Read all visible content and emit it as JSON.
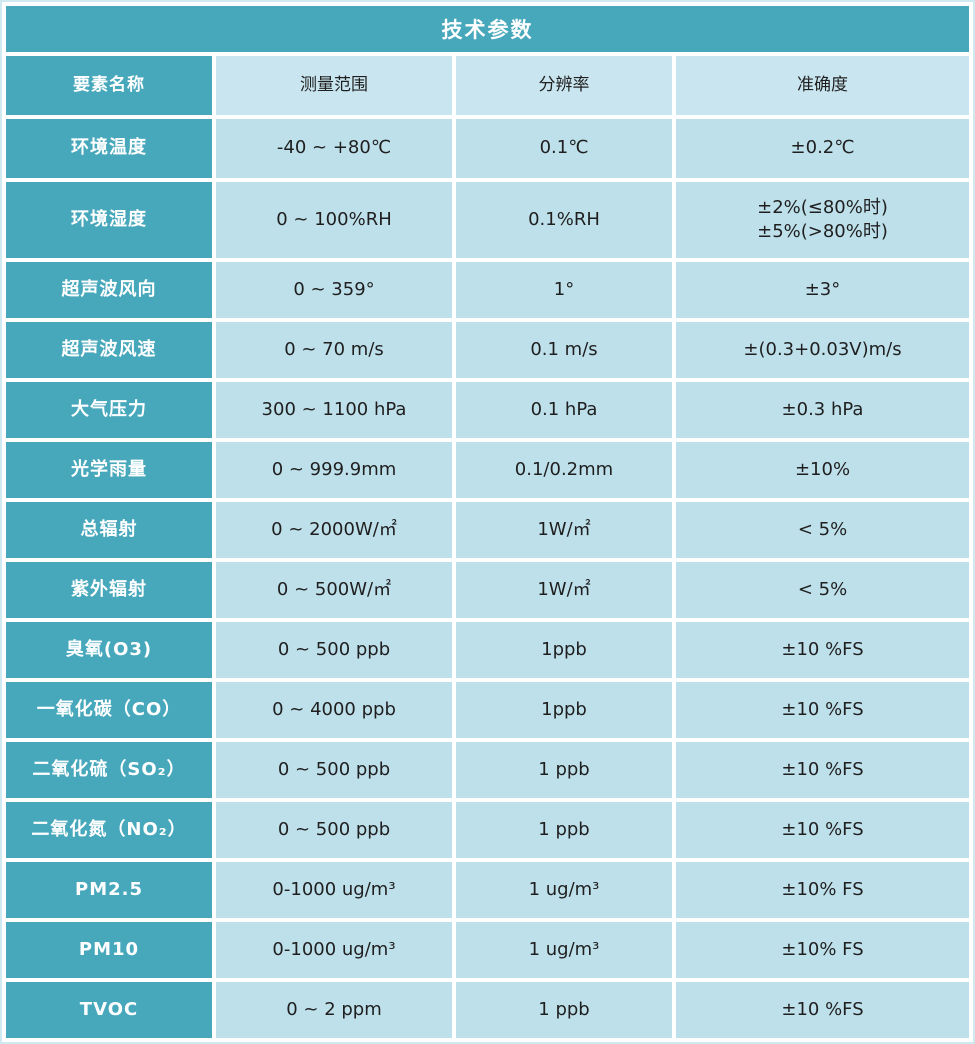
{
  "title": "技术参数",
  "colors": {
    "teal": "#47a8bc",
    "cell_light_blue": "#bee0eb",
    "header_light_blue": "#c9e6f0",
    "text_dark": "#1f1f1f",
    "text_white": "#ffffff"
  },
  "table": {
    "headers": {
      "name": "要素名称",
      "range": "测量范围",
      "resolution": "分辨率",
      "accuracy": "准确度"
    },
    "rows": [
      {
        "name": "环境温度",
        "range": "-40 ~ +80℃",
        "resolution": "0.1℃",
        "accuracy": "±0.2℃"
      },
      {
        "name": "环境湿度",
        "range": "0 ~ 100%RH",
        "resolution": "0.1%RH",
        "accuracy": "±2%(≤80%时)",
        "accuracy2": "±5%(>80%时)"
      },
      {
        "name": "超声波风向",
        "range": "0 ~ 359°",
        "resolution": "1°",
        "accuracy": "±3°"
      },
      {
        "name": "超声波风速",
        "range": "0 ~ 70 m/s",
        "resolution": "0.1 m/s",
        "accuracy": "±(0.3+0.03V)m/s"
      },
      {
        "name": "大气压力",
        "range": "300 ~ 1100 hPa",
        "resolution": "0.1 hPa",
        "accuracy": "±0.3 hPa"
      },
      {
        "name": "光学雨量",
        "range": "0 ~ 999.9mm",
        "resolution": "0.1/0.2mm",
        "accuracy": "±10%"
      },
      {
        "name": "总辐射",
        "range": "0 ~ 2000W/㎡",
        "resolution": "1W/㎡",
        "accuracy": "< 5%"
      },
      {
        "name": "紫外辐射",
        "range": "0 ~ 500W/㎡",
        "resolution": "1W/㎡",
        "accuracy": "< 5%"
      },
      {
        "name": "臭氧(O3)",
        "range": "0 ~ 500 ppb",
        "resolution": "1ppb",
        "accuracy": "±10 %FS"
      },
      {
        "name": "一氧化碳（CO）",
        "range": "0 ~ 4000 ppb",
        "resolution": "1ppb",
        "accuracy": "±10 %FS"
      },
      {
        "name": "二氧化硫（SO₂）",
        "range": "0 ~ 500 ppb",
        "resolution": "1 ppb",
        "accuracy": "±10 %FS"
      },
      {
        "name": "二氧化氮（NO₂）",
        "range": "0 ~ 500 ppb",
        "resolution": "1 ppb",
        "accuracy": "±10 %FS"
      },
      {
        "name": "PM2.5",
        "range": "0-1000 ug/m³",
        "resolution": "1 ug/m³",
        "accuracy": "±10% FS"
      },
      {
        "name": "PM10",
        "range": "0-1000 ug/m³",
        "resolution": "1 ug/m³",
        "accuracy": "±10% FS"
      },
      {
        "name": "TVOC",
        "range": "0 ~ 2 ppm",
        "resolution": "1 ppb",
        "accuracy": "±10 %FS"
      }
    ]
  }
}
